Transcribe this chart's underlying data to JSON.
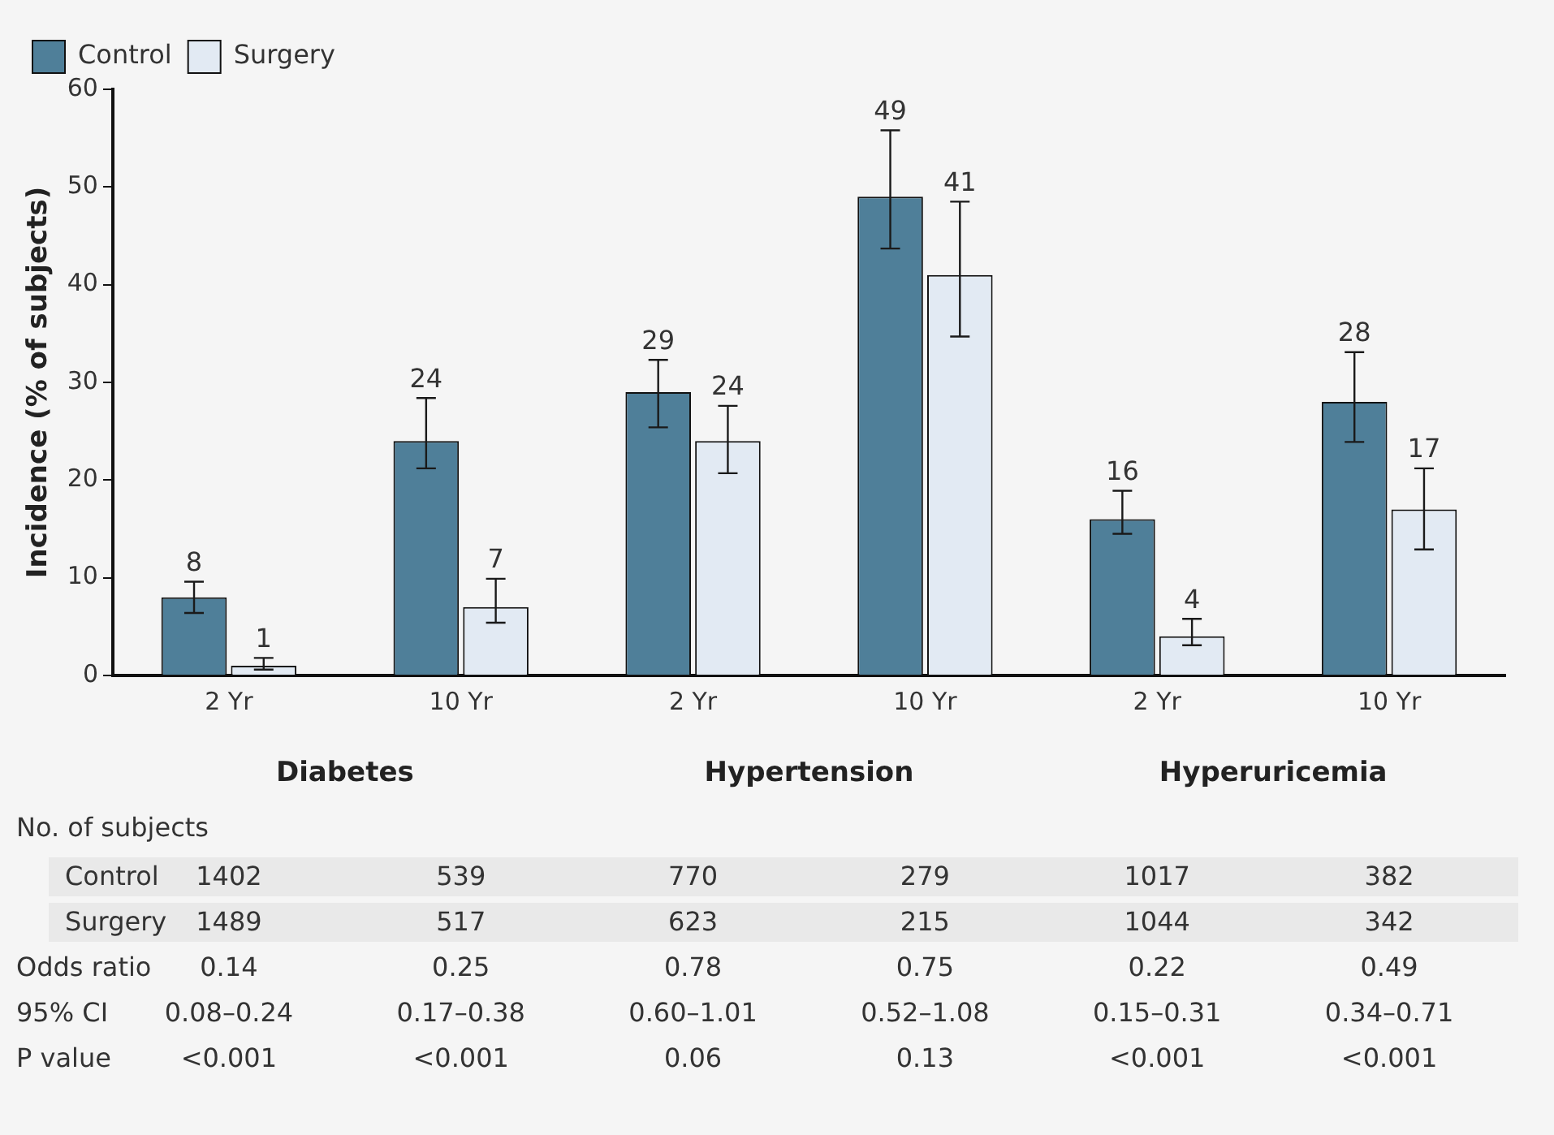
{
  "chart_data": {
    "type": "bar",
    "ylabel": "Incidence (% of subjects)",
    "categories": [
      "2 Yr",
      "10 Yr",
      "2 Yr",
      "10 Yr",
      "2 Yr",
      "10 Yr"
    ],
    "series": [
      {
        "name": "Control",
        "color": "#4f7f99",
        "values": [
          8,
          24,
          29,
          49,
          16,
          28
        ],
        "errors": [
          [
            6.4,
            9.6
          ],
          [
            21.2,
            28.4
          ],
          [
            25.4,
            32.3
          ],
          [
            43.7,
            55.8
          ],
          [
            14.5,
            18.9
          ],
          [
            23.9,
            33.1
          ]
        ]
      },
      {
        "name": "Surgery",
        "color": "#e2eaf3",
        "values": [
          1,
          7,
          24,
          41,
          4,
          17
        ],
        "errors": [
          [
            0.6,
            1.8
          ],
          [
            5.4,
            9.9
          ],
          [
            20.7,
            27.6
          ],
          [
            34.7,
            48.5
          ],
          [
            3.1,
            5.8
          ],
          [
            12.9,
            21.2
          ]
        ]
      }
    ],
    "ylim": [
      0,
      60
    ],
    "yticks": [
      0,
      10,
      20,
      30,
      40,
      50,
      60
    ],
    "grid": false,
    "legend": "top left",
    "data_labels": true,
    "annotations": [
      "Diabetes",
      "Hypertension",
      "Hyperuricemia",
      "No. of subjects",
      "Control",
      "1402",
      "539",
      "770",
      "279",
      "1017",
      "382",
      "Surgery",
      "1489",
      "517",
      "623",
      "215",
      "1044",
      "342",
      "Odds ratio",
      "0.14",
      "0.25",
      "0.78",
      "0.75",
      "0.22",
      "0.49",
      "95% CI",
      "0.08–0.24",
      "0.17–0.38",
      "0.60–1.01",
      "0.52–1.08",
      "0.15–0.31",
      "0.34–0.71",
      "P value",
      "<0.001",
      "<0.001",
      "0.06",
      "0.13",
      "<0.001",
      "<0.001"
    ]
  }
}
